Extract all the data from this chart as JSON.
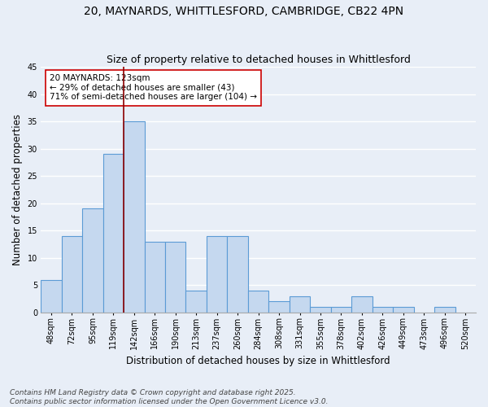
{
  "title1": "20, MAYNARDS, WHITTLESFORD, CAMBRIDGE, CB22 4PN",
  "title2": "Size of property relative to detached houses in Whittlesford",
  "xlabel": "Distribution of detached houses by size in Whittlesford",
  "ylabel": "Number of detached properties",
  "footnote1": "Contains HM Land Registry data © Crown copyright and database right 2025.",
  "footnote2": "Contains public sector information licensed under the Open Government Licence v3.0.",
  "categories": [
    "48sqm",
    "72sqm",
    "95sqm",
    "119sqm",
    "142sqm",
    "166sqm",
    "190sqm",
    "213sqm",
    "237sqm",
    "260sqm",
    "284sqm",
    "308sqm",
    "331sqm",
    "355sqm",
    "378sqm",
    "402sqm",
    "426sqm",
    "449sqm",
    "473sqm",
    "496sqm",
    "520sqm"
  ],
  "bar_values": [
    6,
    14,
    19,
    29,
    35,
    13,
    13,
    4,
    14,
    14,
    4,
    2,
    3,
    1,
    1,
    3,
    1,
    1,
    0,
    1,
    0
  ],
  "bar_color": "#c5d8ef",
  "bar_edge_color": "#5b9bd5",
  "vline_color": "#8b0000",
  "annotation_text": "20 MAYNARDS: 123sqm\n← 29% of detached houses are smaller (43)\n71% of semi-detached houses are larger (104) →",
  "annotation_box_color": "#ffffff",
  "annotation_box_edge": "#cc0000",
  "ylim": [
    0,
    45
  ],
  "yticks": [
    0,
    5,
    10,
    15,
    20,
    25,
    30,
    35,
    40,
    45
  ],
  "bg_color": "#e8eef7",
  "grid_color": "#ffffff",
  "title_fontsize": 10,
  "subtitle_fontsize": 9,
  "axis_fontsize": 8.5,
  "tick_fontsize": 7,
  "footnote_fontsize": 6.5
}
